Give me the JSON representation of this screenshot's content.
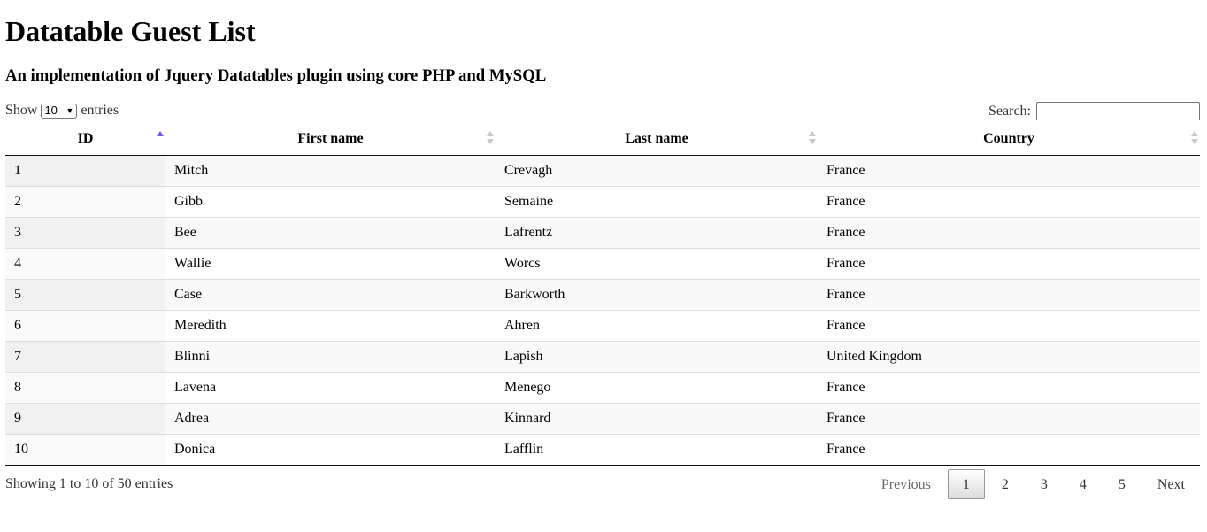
{
  "header": {
    "title": "Datatable Guest List",
    "subtitle": "An implementation of Jquery Datatables plugin using core PHP and MySQL"
  },
  "controls": {
    "show_label": "Show",
    "length_value": "10",
    "entries_label": "entries",
    "search_label": "Search:",
    "search_value": ""
  },
  "table": {
    "columns": [
      "ID",
      "First name",
      "Last name",
      "Country"
    ],
    "sorted_column": "ID",
    "sort_direction": "ascending",
    "rows": [
      [
        "1",
        "Mitch",
        "Crevagh",
        "France"
      ],
      [
        "2",
        "Gibb",
        "Semaine",
        "France"
      ],
      [
        "3",
        "Bee",
        "Lafrentz",
        "France"
      ],
      [
        "4",
        "Wallie",
        "Worcs",
        "France"
      ],
      [
        "5",
        "Case",
        "Barkworth",
        "France"
      ],
      [
        "6",
        "Meredith",
        "Ahren",
        "France"
      ],
      [
        "7",
        "Blinni",
        "Lapish",
        "United Kingdom"
      ],
      [
        "8",
        "Lavena",
        "Menego",
        "France"
      ],
      [
        "9",
        "Adrea",
        "Kinnard",
        "France"
      ],
      [
        "10",
        "Donica",
        "Lafflin",
        "France"
      ]
    ]
  },
  "footer": {
    "info": "Showing 1 to 10 of 50 entries",
    "previous_label": "Previous",
    "next_label": "Next",
    "pages": [
      "1",
      "2",
      "3",
      "4",
      "5"
    ],
    "current_page": "1"
  },
  "colors": {
    "sort_active": "#7c55e6",
    "sort_inactive": "#c8c8c8"
  }
}
